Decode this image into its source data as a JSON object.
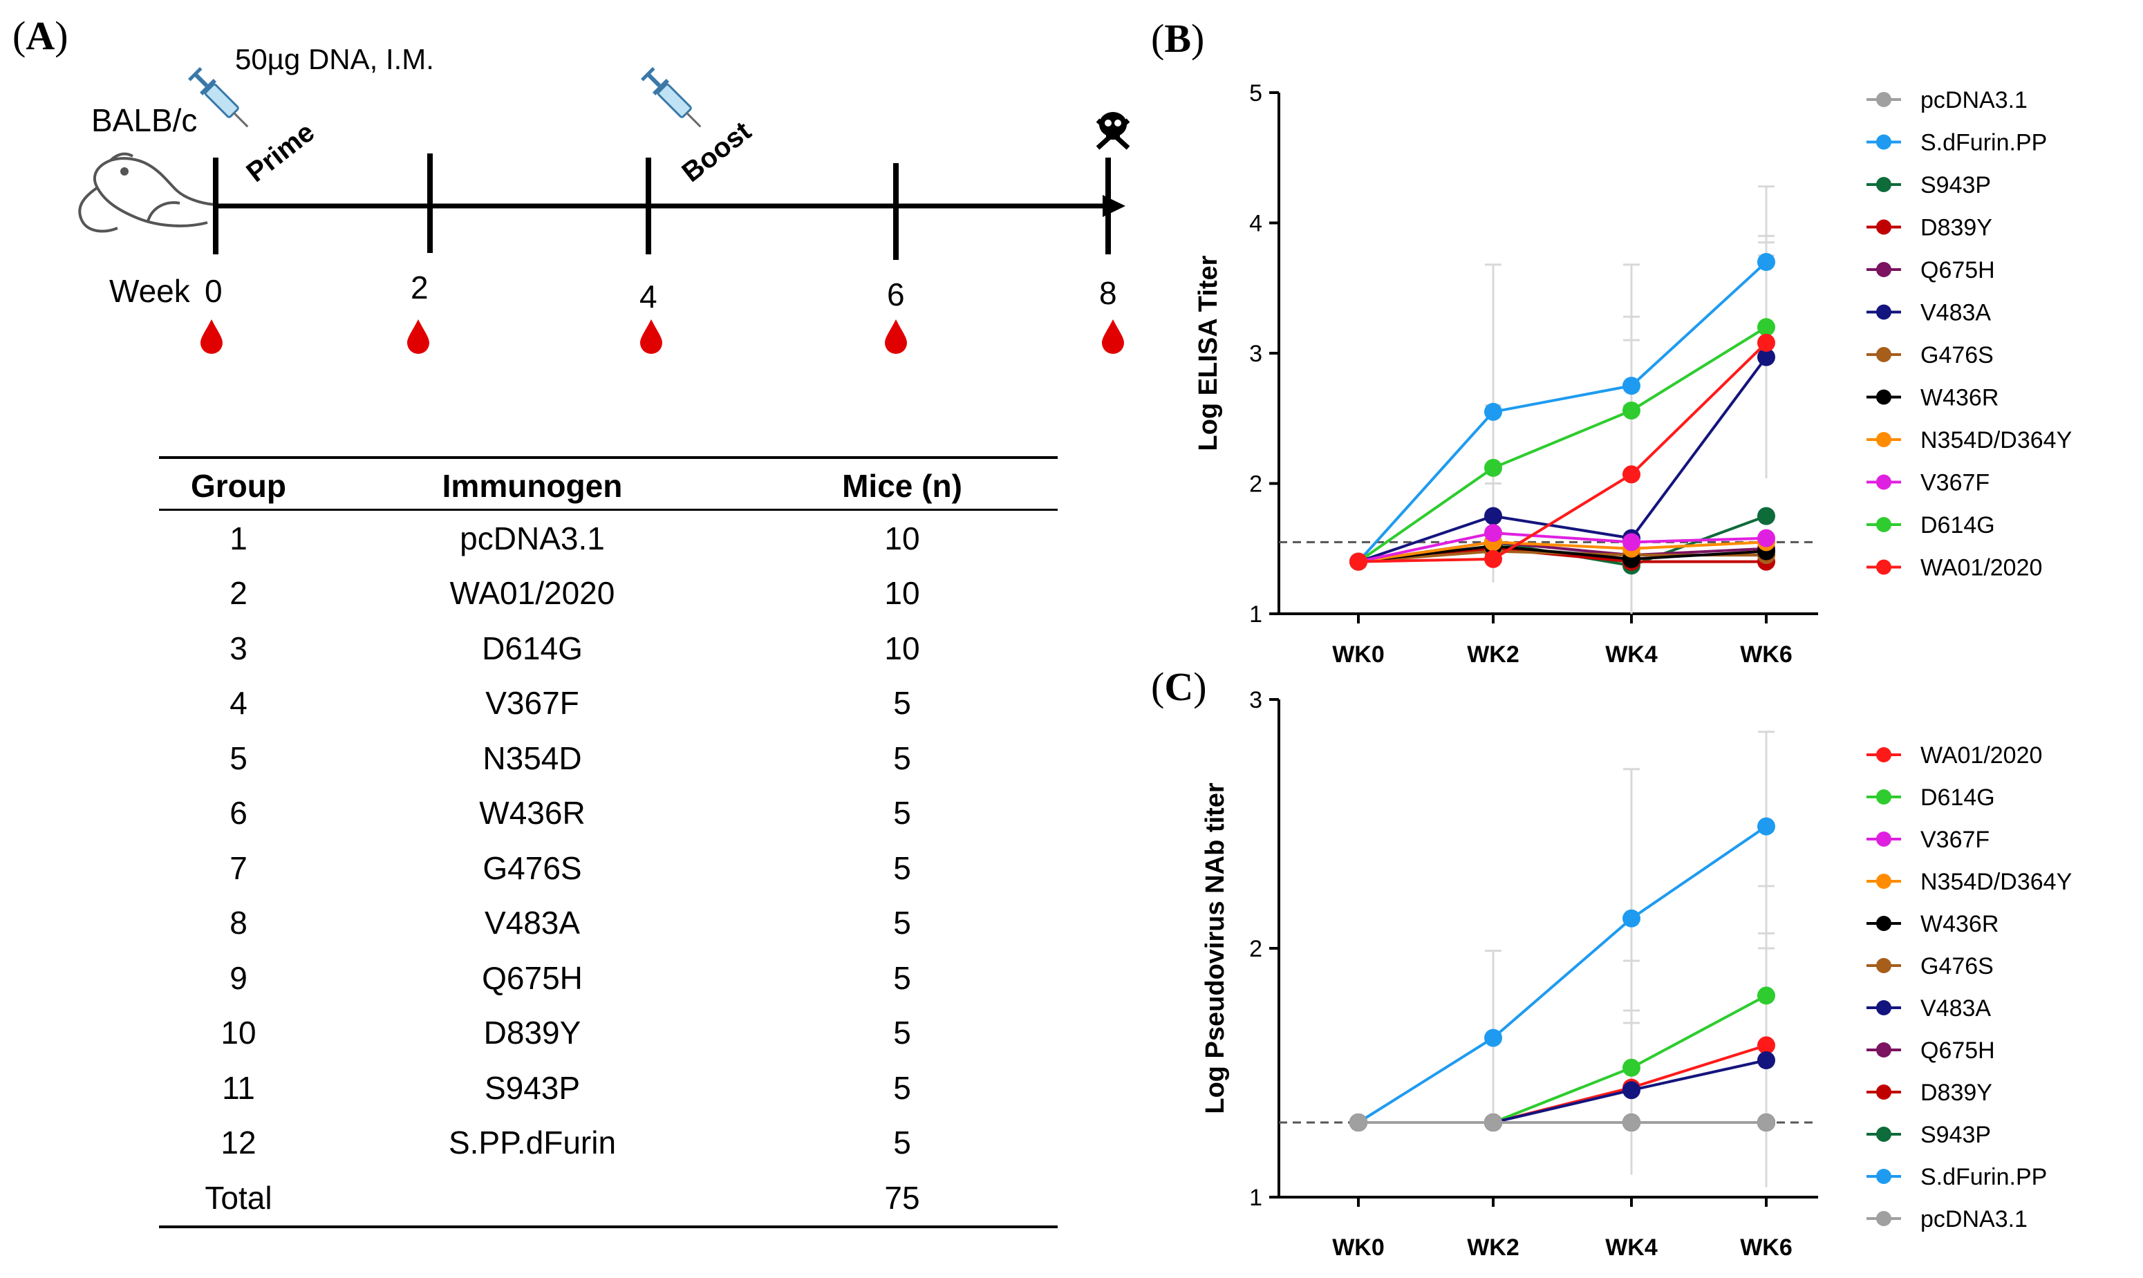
{
  "panel_a": {
    "label": "A",
    "dose": "50µg DNA, I.M.",
    "strain": "BALB/c",
    "prime": "Prime",
    "boost": "Boost",
    "week_label": "Week",
    "weeks": [
      "0",
      "2",
      "4",
      "6",
      "8"
    ],
    "table": {
      "headers": [
        "Group",
        "Immunogen",
        "Mice (n)"
      ],
      "rows": [
        {
          "group": "1",
          "immunogen": "pcDNA3.1",
          "mice": "10"
        },
        {
          "group": "2",
          "immunogen": "WA01/2020",
          "mice": "10"
        },
        {
          "group": "3",
          "immunogen": "D614G",
          "mice": "10"
        },
        {
          "group": "4",
          "immunogen": "V367F",
          "mice": "5"
        },
        {
          "group": "5",
          "immunogen": "N354D",
          "mice": "5"
        },
        {
          "group": "6",
          "immunogen": "W436R",
          "mice": "5"
        },
        {
          "group": "7",
          "immunogen": "G476S",
          "mice": "5"
        },
        {
          "group": "8",
          "immunogen": "V483A",
          "mice": "5"
        },
        {
          "group": "9",
          "immunogen": "Q675H",
          "mice": "5"
        },
        {
          "group": "10",
          "immunogen": "D839Y",
          "mice": "5"
        },
        {
          "group": "11",
          "immunogen": "S943P",
          "mice": "5"
        },
        {
          "group": "12",
          "immunogen": "S.PP.dFurin",
          "mice": "5"
        }
      ],
      "total_label": "Total",
      "total_mice": "75"
    }
  },
  "chart_data": [
    {
      "panel": "B",
      "type": "line",
      "ylabel": "Log ELISA Titer",
      "xlabel": "",
      "categories": [
        "WK0",
        "WK2",
        "WK4",
        "WK6"
      ],
      "ylim": [
        1,
        5
      ],
      "yticks": [
        "1",
        "2",
        "3",
        "4",
        "5"
      ],
      "cutoff": 1.55,
      "series": [
        {
          "name": "pcDNA3.1",
          "color": "#A0A0A0",
          "values": [
            1.4,
            1.5,
            1.45,
            1.45
          ]
        },
        {
          "name": "S.dFurin.PP",
          "color": "#1E9BF0",
          "values": [
            1.4,
            2.55,
            2.75,
            3.7
          ],
          "err_hi": [
            1.4,
            3.68,
            3.68,
            4.28
          ]
        },
        {
          "name": "S943P",
          "color": "#0E6B3A",
          "values": [
            1.4,
            1.55,
            1.37,
            1.75
          ]
        },
        {
          "name": "D839Y",
          "color": "#C00000",
          "values": [
            1.4,
            1.5,
            1.4,
            1.4
          ]
        },
        {
          "name": "Q675H",
          "color": "#7B1360",
          "values": [
            1.4,
            1.55,
            1.45,
            1.5
          ]
        },
        {
          "name": "V483A",
          "color": "#14147E",
          "values": [
            1.4,
            1.75,
            1.58,
            2.97
          ],
          "err_hi": [
            1.4,
            2.0,
            3.28,
            3.9
          ]
        },
        {
          "name": "G476S",
          "color": "#A65E1A",
          "values": [
            1.4,
            1.48,
            1.45,
            1.45
          ]
        },
        {
          "name": "W436R",
          "color": "#000000",
          "values": [
            1.4,
            1.52,
            1.42,
            1.48
          ]
        },
        {
          "name": " N354D/D364Y",
          "color": "#FF8C00",
          "values": [
            1.4,
            1.55,
            1.5,
            1.55
          ]
        },
        {
          "name": "V367F",
          "color": "#E020E0",
          "values": [
            1.4,
            1.62,
            1.55,
            1.58
          ]
        },
        {
          "name": "D614G",
          "color": "#2ECC2E",
          "values": [
            1.4,
            2.12,
            2.56,
            3.2
          ],
          "err_hi": [
            1.4,
            2.6,
            3.1,
            3.85
          ]
        },
        {
          "name": "WA01/2020",
          "color": "#FF1A1A",
          "values": [
            1.4,
            1.42,
            2.07,
            3.08
          ],
          "err_hi": [
            1.4,
            1.6,
            2.6,
            3.75
          ]
        }
      ]
    },
    {
      "panel": "C",
      "type": "line",
      "ylabel": "Log Pseudovirus NAb titer",
      "xlabel": "",
      "categories": [
        "WK0",
        "WK2",
        "WK4",
        "WK6"
      ],
      "ylim": [
        1,
        3
      ],
      "yticks": [
        "1",
        "2",
        "3"
      ],
      "cutoff": 1.3,
      "series": [
        {
          "name": "WA01/2020",
          "color": "#FF1A1A",
          "values": [
            1.3,
            1.3,
            1.44,
            1.61
          ],
          "err_hi": [
            1.3,
            1.3,
            1.75,
            2.0
          ]
        },
        {
          "name": " D614G",
          "color": "#2ECC2E",
          "values": [
            1.3,
            1.3,
            1.52,
            1.81
          ],
          "err_hi": [
            1.3,
            1.3,
            1.95,
            2.25
          ]
        },
        {
          "name": "V367F",
          "color": "#E020E0",
          "values": [
            1.3,
            1.3,
            1.3,
            1.3
          ]
        },
        {
          "name": "N354D/D364Y",
          "color": "#FF8C00",
          "values": [
            1.3,
            1.3,
            1.3,
            1.3
          ]
        },
        {
          "name": " W436R",
          "color": "#000000",
          "values": [
            1.3,
            1.3,
            1.3,
            1.3
          ]
        },
        {
          "name": "G476S",
          "color": "#A65E1A",
          "values": [
            1.3,
            1.3,
            1.3,
            1.3
          ]
        },
        {
          "name": "V483A",
          "color": "#14147E",
          "values": [
            1.3,
            1.3,
            1.43,
            1.55
          ],
          "err_hi": [
            1.3,
            1.3,
            1.7,
            2.06
          ]
        },
        {
          "name": "Q675H",
          "color": "#7B1360",
          "values": [
            1.3,
            1.3,
            1.3,
            1.3
          ]
        },
        {
          "name": "D839Y",
          "color": "#C00000",
          "values": [
            1.3,
            1.3,
            1.3,
            1.3
          ]
        },
        {
          "name": "S943P",
          "color": "#0E6B3A",
          "values": [
            1.3,
            1.3,
            1.3,
            1.3
          ]
        },
        {
          "name": "S.dFurin.PP",
          "color": "#1E9BF0",
          "values": [
            1.3,
            1.64,
            2.12,
            2.49
          ],
          "err_hi": [
            1.3,
            1.99,
            2.72,
            2.87
          ]
        },
        {
          "name": "pcDNA3.1",
          "color": "#A0A0A0",
          "values": [
            1.3,
            1.3,
            1.3,
            1.3
          ]
        }
      ]
    }
  ]
}
